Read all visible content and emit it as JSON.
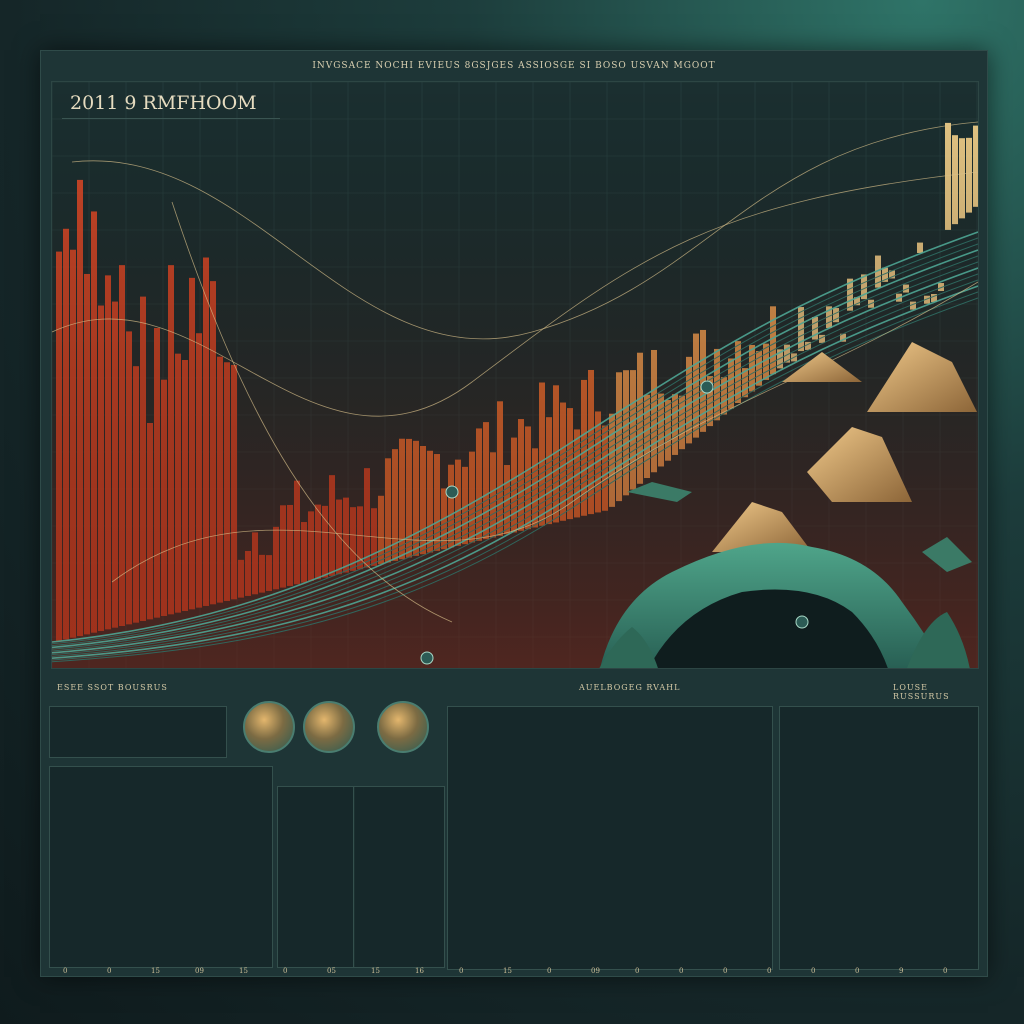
{
  "top_right_note": "",
  "header_text": "INVGSACE NOCHI EVIEUS 8GSJGES    ASSIOSGE SI BOSO USVAN MGOOT",
  "plot_title": "2011 9 RMFHOOM",
  "plot_labels": [],
  "section_labels": {
    "left": "ESEE SSOT BOUSRUS",
    "center": "AUELBOGEG RVAHL",
    "right": "LOUSE RUSSURUS"
  },
  "colors": {
    "bar_red": "#d9492a",
    "bar_orange": "#ef8a3e",
    "bar_yellow": "#f3d48a",
    "river_teal": "#3a8a7a",
    "background": "#16292c"
  },
  "thumbnails": [
    "thumb-landscape-icon",
    "thumb-bridge-icon",
    "thumb-island-icon"
  ],
  "footer_ticks": [
    "0",
    "0",
    "15",
    "09",
    "15",
    "0",
    "05",
    "15",
    "16",
    "0",
    "15",
    "0",
    "09",
    "0",
    "0",
    "0",
    "0",
    "0",
    "0",
    "9",
    "0"
  ]
}
